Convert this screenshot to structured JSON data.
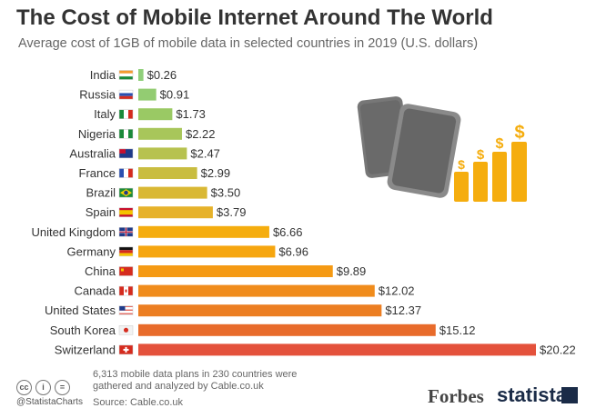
{
  "header": {
    "title": "The Cost of Mobile Internet Around The World",
    "subtitle": "Average cost of 1GB of mobile data in selected countries in 2019 (U.S. dollars)"
  },
  "chart_data": {
    "type": "bar",
    "orientation": "horizontal",
    "title": "The Cost of Mobile Internet Around The World",
    "subtitle": "Average cost of 1GB of mobile data in selected countries in 2019 (U.S. dollars)",
    "categories": [
      "India",
      "Russia",
      "Italy",
      "Nigeria",
      "Australia",
      "France",
      "Brazil",
      "Spain",
      "United Kingdom",
      "Germany",
      "China",
      "Canada",
      "United States",
      "South Korea",
      "Switzerland"
    ],
    "values": [
      0.26,
      0.91,
      1.73,
      2.22,
      2.47,
      2.99,
      3.5,
      3.79,
      6.66,
      6.96,
      9.89,
      12.02,
      12.37,
      15.12,
      20.22
    ],
    "labels": [
      "$0.26",
      "$0.91",
      "$1.73",
      "$2.22",
      "$2.47",
      "$2.99",
      "$3.50",
      "$3.79",
      "$6.66",
      "$6.96",
      "$9.89",
      "$12.02",
      "$12.37",
      "$15.12",
      "$20.22"
    ],
    "bar_colors": [
      "#8fcf7a",
      "#93cc72",
      "#9ac964",
      "#a8c65a",
      "#b7c24f",
      "#c9bd40",
      "#d9b834",
      "#e6b22a",
      "#f5ad0e",
      "#f6a60f",
      "#f59a14",
      "#f08c1c",
      "#ec7e22",
      "#e86b2b",
      "#e4513b"
    ],
    "xlim": [
      0,
      20.22
    ],
    "axes_visible": false,
    "grid": false,
    "legend": "none"
  },
  "footer": {
    "note": "6,313 mobile data plans in 230 countries were gathered and analyzed by Cable.co.uk",
    "source": "Source: Cable.co.uk",
    "handle": "@StatistaCharts",
    "license_icons": [
      "cc",
      "i",
      "="
    ],
    "logo_forbes": "Forbes",
    "logo_statista": "statista"
  },
  "illustration": {
    "dollar_sign": "$",
    "coin_color": "#f5ad0e",
    "phone_color": "#666666"
  }
}
